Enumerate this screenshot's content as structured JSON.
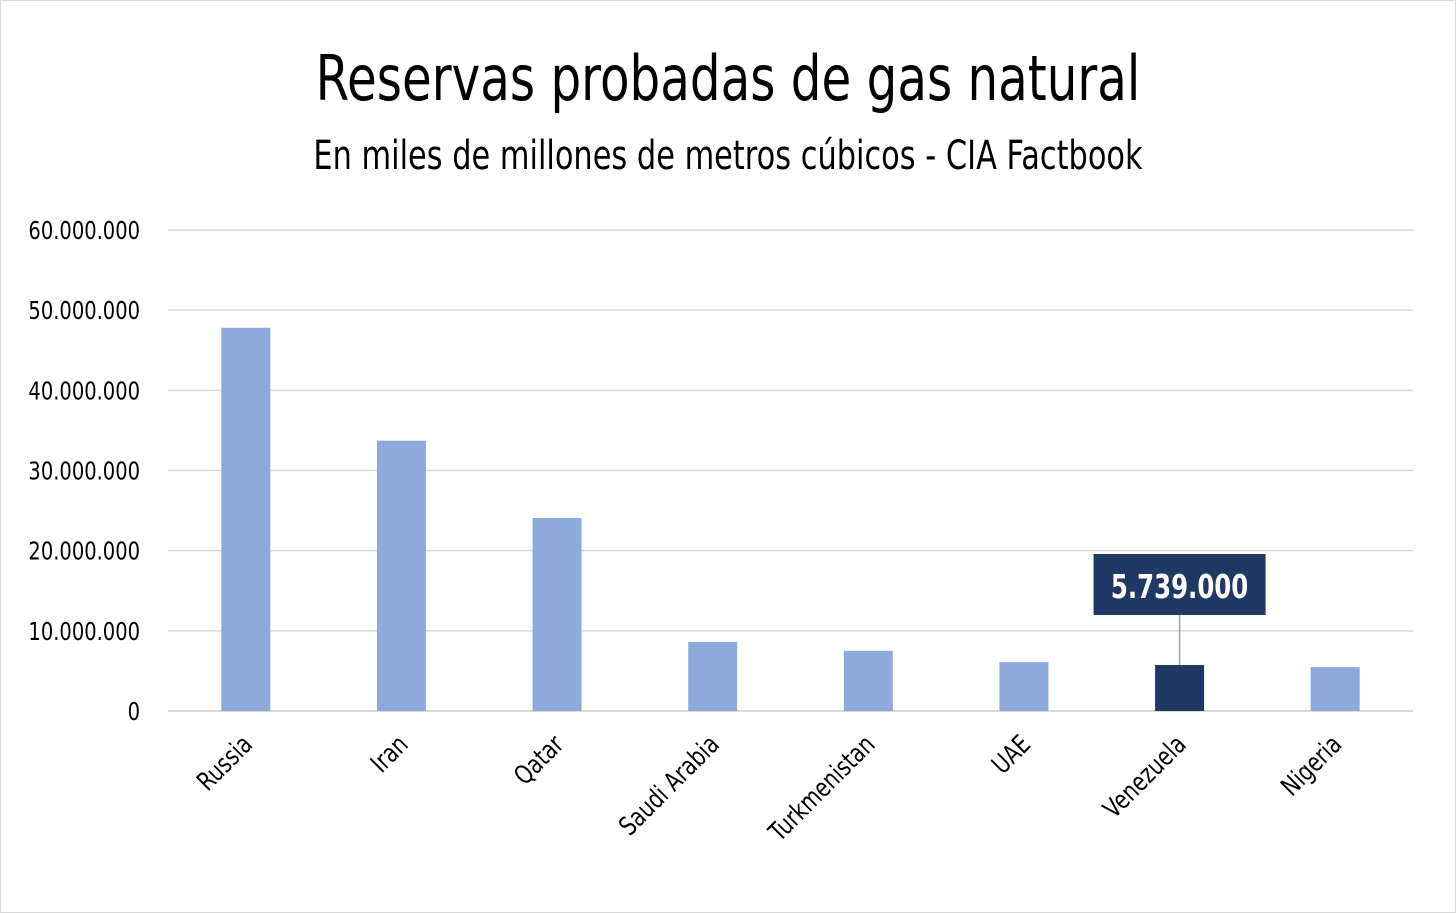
{
  "title": "Reservas probadas de gas natural",
  "subtitle": "En miles de millones de metros cúbicos - CIA Factbook",
  "colors": {
    "bar": "#8eaadb",
    "highlight": "#1f3864",
    "grid": "#d9d9d9"
  },
  "chart_data": {
    "type": "bar",
    "title": "Reservas probadas de gas natural",
    "subtitle": "En miles de millones de metros cúbicos - CIA Factbook",
    "categories": [
      "Russia",
      "Iran",
      "Qatar",
      "Saudi Arabia",
      "Turkmenistan",
      "UAE",
      "Venezuela",
      "Nigeria"
    ],
    "values": [
      47800000,
      33720000,
      24070000,
      8619000,
      7504000,
      6091000,
      5739000,
      5475000
    ],
    "ylim": [
      0,
      60000000
    ],
    "yticks": [
      0,
      10000000,
      20000000,
      30000000,
      40000000,
      50000000,
      60000000
    ],
    "ytick_labels": [
      "0",
      "10.000.000",
      "20.000.000",
      "30.000.000",
      "40.000.000",
      "50.000.000",
      "60.000.000"
    ],
    "grid": true,
    "legend": "none",
    "highlight_category": "Venezuela",
    "annotation": {
      "category": "Venezuela",
      "text": "5.739.000"
    }
  }
}
